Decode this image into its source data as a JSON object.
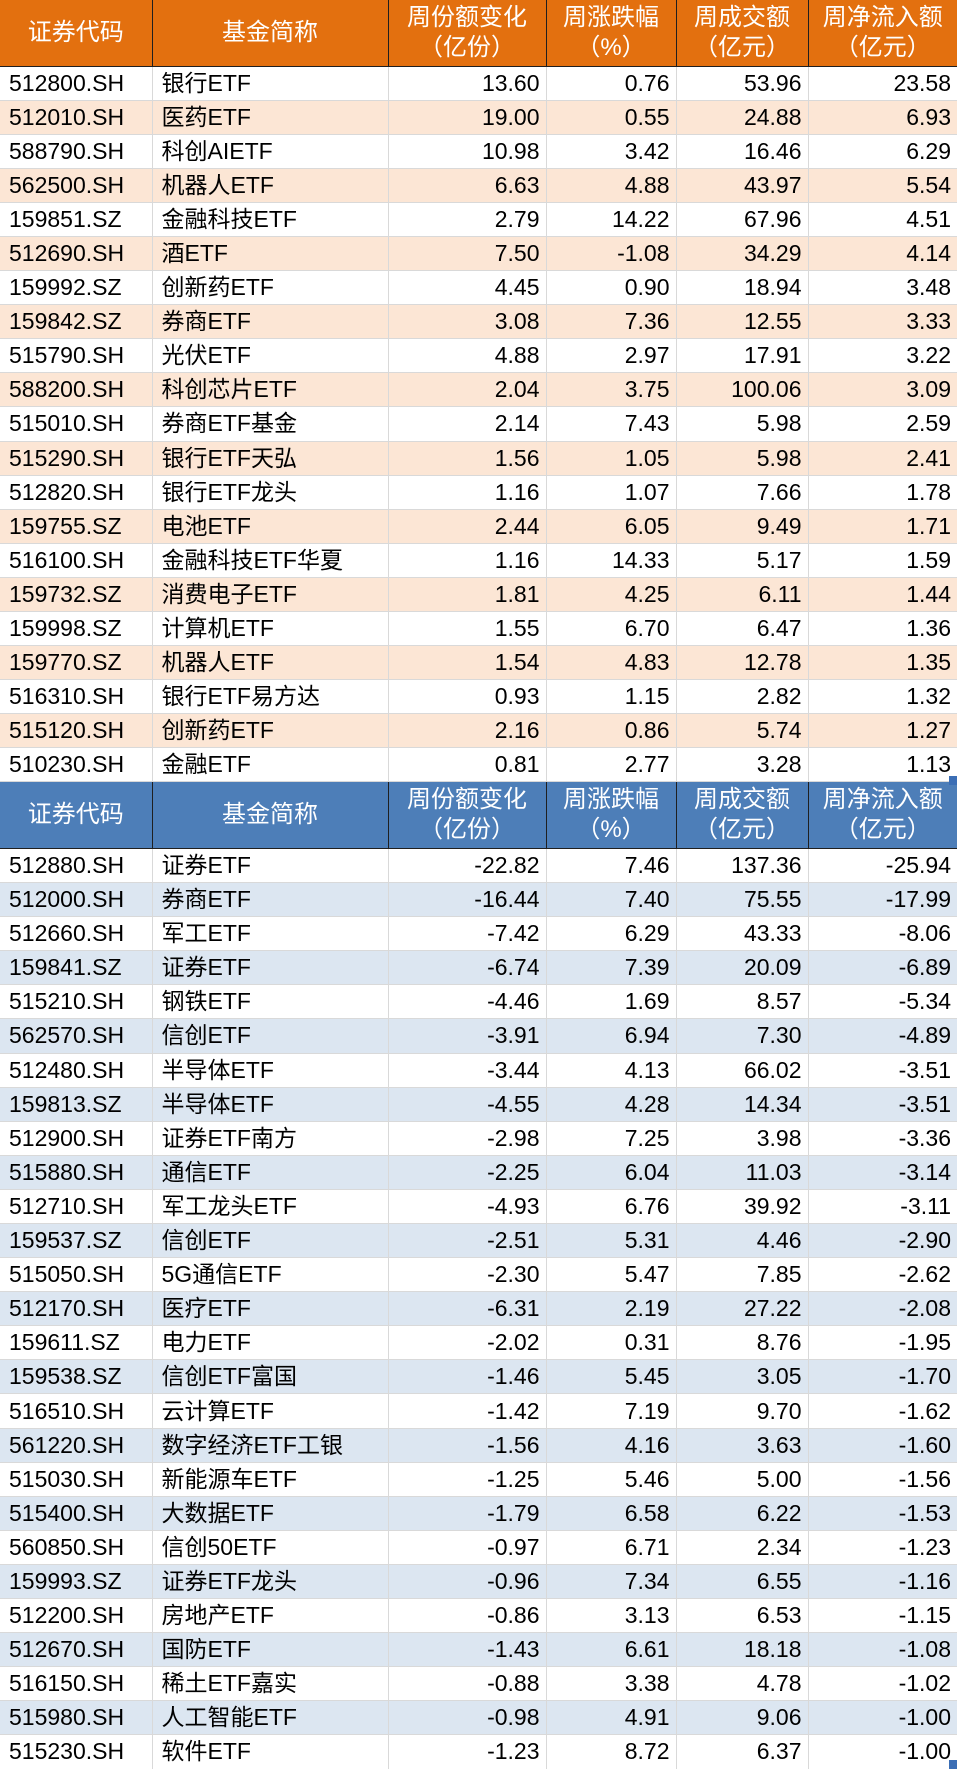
{
  "theme_colors": {
    "inflow_header_bg": "#E3700F",
    "inflow_stripe_bg": "#FCE6D5",
    "outflow_header_bg": "#4D7EB8",
    "outflow_stripe_bg": "#DCE6F1",
    "header_text": "#FFFFFF",
    "body_text": "#000000",
    "gridline": "#D9D9D9",
    "selection_handle": "#3B6EB5"
  },
  "tables": [
    {
      "id": "weekly-inflow-table",
      "theme": {
        "header_bg": "#E3700F",
        "stripe_bg": "#FCE6D5"
      },
      "columns": [
        {
          "key": "code",
          "label": "证券代码"
        },
        {
          "key": "name",
          "label": "基金简称"
        },
        {
          "key": "share-change",
          "label": "周份额变化\n（亿份）"
        },
        {
          "key": "pct-change",
          "label": "周涨跌幅\n（%）"
        },
        {
          "key": "turnover",
          "label": "周成交额\n（亿元）"
        },
        {
          "key": "net-flow",
          "label": "周净流入额\n（亿元）"
        }
      ],
      "rows": [
        [
          "512800.SH",
          "银行ETF",
          "13.60",
          "0.76",
          "53.96",
          "23.58"
        ],
        [
          "512010.SH",
          "医药ETF",
          "19.00",
          "0.55",
          "24.88",
          "6.93"
        ],
        [
          "588790.SH",
          "科创AIETF",
          "10.98",
          "3.42",
          "16.46",
          "6.29"
        ],
        [
          "562500.SH",
          "机器人ETF",
          "6.63",
          "4.88",
          "43.97",
          "5.54"
        ],
        [
          "159851.SZ",
          "金融科技ETF",
          "2.79",
          "14.22",
          "67.96",
          "4.51"
        ],
        [
          "512690.SH",
          "酒ETF",
          "7.50",
          "-1.08",
          "34.29",
          "4.14"
        ],
        [
          "159992.SZ",
          "创新药ETF",
          "4.45",
          "0.90",
          "18.94",
          "3.48"
        ],
        [
          "159842.SZ",
          "券商ETF",
          "3.08",
          "7.36",
          "12.55",
          "3.33"
        ],
        [
          "515790.SH",
          "光伏ETF",
          "4.88",
          "2.97",
          "17.91",
          "3.22"
        ],
        [
          "588200.SH",
          "科创芯片ETF",
          "2.04",
          "3.75",
          "100.06",
          "3.09"
        ],
        [
          "515010.SH",
          "券商ETF基金",
          "2.14",
          "7.43",
          "5.98",
          "2.59"
        ],
        [
          "515290.SH",
          "银行ETF天弘",
          "1.56",
          "1.05",
          "5.98",
          "2.41"
        ],
        [
          "512820.SH",
          "银行ETF龙头",
          "1.16",
          "1.07",
          "7.66",
          "1.78"
        ],
        [
          "159755.SZ",
          "电池ETF",
          "2.44",
          "6.05",
          "9.49",
          "1.71"
        ],
        [
          "516100.SH",
          "金融科技ETF华夏",
          "1.16",
          "14.33",
          "5.17",
          "1.59"
        ],
        [
          "159732.SZ",
          "消费电子ETF",
          "1.81",
          "4.25",
          "6.11",
          "1.44"
        ],
        [
          "159998.SZ",
          "计算机ETF",
          "1.55",
          "6.70",
          "6.47",
          "1.36"
        ],
        [
          "159770.SZ",
          "机器人ETF",
          "1.54",
          "4.83",
          "12.78",
          "1.35"
        ],
        [
          "516310.SH",
          "银行ETF易方达",
          "0.93",
          "1.15",
          "2.82",
          "1.32"
        ],
        [
          "515120.SH",
          "创新药ETF",
          "2.16",
          "0.86",
          "5.74",
          "1.27"
        ],
        [
          "510230.SH",
          "金融ETF",
          "0.81",
          "2.77",
          "3.28",
          "1.13"
        ]
      ]
    },
    {
      "id": "weekly-outflow-table",
      "theme": {
        "header_bg": "#4D7EB8",
        "stripe_bg": "#DCE6F1"
      },
      "columns": [
        {
          "key": "code",
          "label": "证券代码"
        },
        {
          "key": "name",
          "label": "基金简称"
        },
        {
          "key": "share-change",
          "label": "周份额变化\n（亿份）"
        },
        {
          "key": "pct-change",
          "label": "周涨跌幅\n（%）"
        },
        {
          "key": "turnover",
          "label": "周成交额\n（亿元）"
        },
        {
          "key": "net-flow",
          "label": "周净流入额\n（亿元）"
        }
      ],
      "rows": [
        [
          "512880.SH",
          "证券ETF",
          "-22.82",
          "7.46",
          "137.36",
          "-25.94"
        ],
        [
          "512000.SH",
          "券商ETF",
          "-16.44",
          "7.40",
          "75.55",
          "-17.99"
        ],
        [
          "512660.SH",
          "军工ETF",
          "-7.42",
          "6.29",
          "43.33",
          "-8.06"
        ],
        [
          "159841.SZ",
          "证券ETF",
          "-6.74",
          "7.39",
          "20.09",
          "-6.89"
        ],
        [
          "515210.SH",
          "钢铁ETF",
          "-4.46",
          "1.69",
          "8.57",
          "-5.34"
        ],
        [
          "562570.SH",
          "信创ETF",
          "-3.91",
          "6.94",
          "7.30",
          "-4.89"
        ],
        [
          "512480.SH",
          "半导体ETF",
          "-3.44",
          "4.13",
          "66.02",
          "-3.51"
        ],
        [
          "159813.SZ",
          "半导体ETF",
          "-4.55",
          "4.28",
          "14.34",
          "-3.51"
        ],
        [
          "512900.SH",
          "证券ETF南方",
          "-2.98",
          "7.25",
          "3.98",
          "-3.36"
        ],
        [
          "515880.SH",
          "通信ETF",
          "-2.25",
          "6.04",
          "11.03",
          "-3.14"
        ],
        [
          "512710.SH",
          "军工龙头ETF",
          "-4.93",
          "6.76",
          "39.92",
          "-3.11"
        ],
        [
          "159537.SZ",
          "信创ETF",
          "-2.51",
          "5.31",
          "4.46",
          "-2.90"
        ],
        [
          "515050.SH",
          "5G通信ETF",
          "-2.30",
          "5.47",
          "7.85",
          "-2.62"
        ],
        [
          "512170.SH",
          "医疗ETF",
          "-6.31",
          "2.19",
          "27.22",
          "-2.08"
        ],
        [
          "159611.SZ",
          "电力ETF",
          "-2.02",
          "0.31",
          "8.76",
          "-1.95"
        ],
        [
          "159538.SZ",
          "信创ETF富国",
          "-1.46",
          "5.45",
          "3.05",
          "-1.70"
        ],
        [
          "516510.SH",
          "云计算ETF",
          "-1.42",
          "7.19",
          "9.70",
          "-1.62"
        ],
        [
          "561220.SH",
          "数字经济ETF工银",
          "-1.56",
          "4.16",
          "3.63",
          "-1.60"
        ],
        [
          "515030.SH",
          "新能源车ETF",
          "-1.25",
          "5.46",
          "5.00",
          "-1.56"
        ],
        [
          "515400.SH",
          "大数据ETF",
          "-1.79",
          "6.58",
          "6.22",
          "-1.53"
        ],
        [
          "560850.SH",
          "信创50ETF",
          "-0.97",
          "6.71",
          "2.34",
          "-1.23"
        ],
        [
          "159993.SZ",
          "证券ETF龙头",
          "-0.96",
          "7.34",
          "6.55",
          "-1.16"
        ],
        [
          "512200.SH",
          "房地产ETF",
          "-0.86",
          "3.13",
          "6.53",
          "-1.15"
        ],
        [
          "512670.SH",
          "国防ETF",
          "-1.43",
          "6.61",
          "18.18",
          "-1.08"
        ],
        [
          "516150.SH",
          "稀土ETF嘉实",
          "-0.88",
          "3.38",
          "4.78",
          "-1.02"
        ],
        [
          "515980.SH",
          "人工智能ETF",
          "-0.98",
          "4.91",
          "9.06",
          "-1.00"
        ],
        [
          "515230.SH",
          "软件ETF",
          "-1.23",
          "8.72",
          "6.37",
          "-1.00"
        ]
      ]
    }
  ]
}
